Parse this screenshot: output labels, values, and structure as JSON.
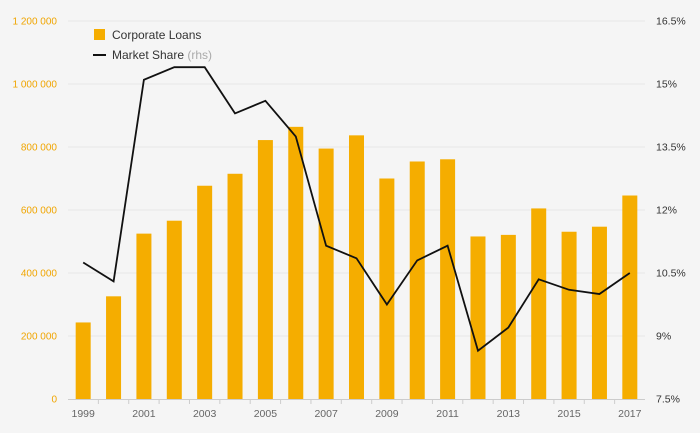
{
  "chart_data": {
    "type": "bar",
    "x": [
      1999,
      2000,
      2001,
      2002,
      2003,
      2004,
      2005,
      2006,
      2007,
      2008,
      2009,
      2010,
      2011,
      2012,
      2013,
      2014,
      2015,
      2016,
      2017
    ],
    "x_tick_labels": [
      "1999",
      "2001",
      "2003",
      "2005",
      "2007",
      "2009",
      "2011",
      "2013",
      "2015",
      "2017"
    ],
    "series": [
      {
        "name": "Corporate Loans",
        "type": "bar",
        "axis": "left",
        "color": "#f5ad00",
        "values": [
          243000,
          326000,
          525000,
          566000,
          677000,
          715000,
          822000,
          864000,
          795000,
          837000,
          700000,
          754000,
          761000,
          516000,
          521000,
          605000,
          531000,
          547000,
          646000
        ]
      },
      {
        "name": "Market Share",
        "name_suffix": " (rhs)",
        "type": "line",
        "axis": "right",
        "color": "#111111",
        "values": [
          10.75,
          10.3,
          15.1,
          15.4,
          15.4,
          14.3,
          14.6,
          13.75,
          11.15,
          10.85,
          9.75,
          10.8,
          11.15,
          8.65,
          9.2,
          10.35,
          10.1,
          10.0,
          10.5
        ]
      }
    ],
    "y_left": {
      "min": 0,
      "max": 1200000,
      "ticks": [
        0,
        200000,
        400000,
        600000,
        800000,
        1000000,
        1200000
      ],
      "tick_labels": [
        "0",
        "200 000",
        "400 000",
        "600 000",
        "800 000",
        "1 000 000",
        "1 200 000"
      ]
    },
    "y_right": {
      "min": 7.5,
      "max": 16.5,
      "ticks": [
        7.5,
        9,
        10.5,
        12,
        13.5,
        15,
        16.5
      ],
      "tick_labels": [
        "7.5%",
        "9%",
        "10.5%",
        "12%",
        "13.5%",
        "15%",
        "16.5%"
      ]
    },
    "grid": "horizontal",
    "legend_position": "top-left",
    "title": "",
    "xlabel": "",
    "ylabel": ""
  }
}
